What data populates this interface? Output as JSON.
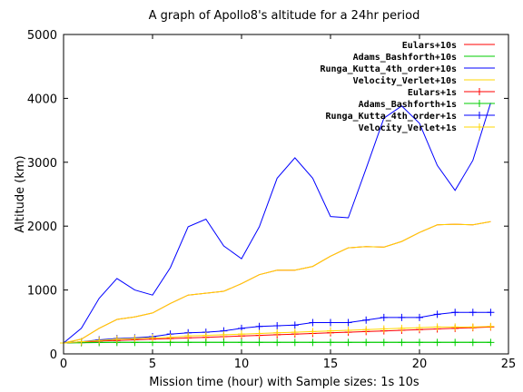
{
  "chart_data": {
    "type": "line",
    "title": "A graph of Apollo8's altitude for a 24hr period",
    "xlabel": "Mission time (hour) with Sample sizes: 1s   10s",
    "ylabel": "Altitude (km)",
    "xlim": [
      0,
      25
    ],
    "ylim": [
      0,
      5000
    ],
    "xticks": [
      0,
      5,
      10,
      15,
      20,
      25
    ],
    "yticks": [
      0,
      1000,
      2000,
      3000,
      4000,
      5000
    ],
    "grid": false,
    "legend_position": "top-right",
    "series": [
      {
        "name": "Eulars+10s",
        "color": "#ff0000",
        "marker": false,
        "x": [
          0,
          1,
          2,
          3,
          4,
          5,
          6,
          7,
          8,
          9,
          10,
          11,
          12,
          13,
          14,
          15,
          16,
          17,
          18,
          19,
          20,
          21,
          22,
          23,
          24
        ],
        "y": [
          170,
          230,
          400,
          540,
          580,
          640,
          790,
          920,
          950,
          980,
          1100,
          1240,
          1310,
          1310,
          1370,
          1530,
          1660,
          1680,
          1670,
          1760,
          1900,
          2020,
          2030,
          2020,
          2070
        ]
      },
      {
        "name": "Adams_Bashforth+10s",
        "color": "#00cc00",
        "marker": false,
        "x": [
          0,
          24
        ],
        "y": [
          180,
          180
        ]
      },
      {
        "name": "Runga_Kutta_4th_order+10s",
        "color": "#0000ff",
        "marker": false,
        "x": [
          0,
          1,
          2,
          3,
          4,
          5,
          6,
          7,
          8,
          9,
          10,
          11,
          12,
          13,
          14,
          15,
          16,
          17,
          18,
          19,
          20,
          21,
          22,
          23,
          24
        ],
        "y": [
          170,
          400,
          870,
          1180,
          1000,
          920,
          1350,
          1990,
          2110,
          1690,
          1490,
          1990,
          2750,
          3070,
          2750,
          2150,
          2130,
          2900,
          3690,
          3880,
          3610,
          2950,
          2560,
          3030,
          3930
        ]
      },
      {
        "name": "Velocity_Verlet+10s",
        "color": "#ffd700",
        "marker": false,
        "x": [
          0,
          1,
          2,
          3,
          4,
          5,
          6,
          7,
          8,
          9,
          10,
          11,
          12,
          13,
          14,
          15,
          16,
          17,
          18,
          19,
          20,
          21,
          22,
          23,
          24
        ],
        "y": [
          170,
          230,
          400,
          540,
          580,
          640,
          790,
          920,
          950,
          980,
          1100,
          1240,
          1310,
          1310,
          1370,
          1530,
          1660,
          1680,
          1670,
          1760,
          1900,
          2020,
          2030,
          2020,
          2070
        ]
      },
      {
        "name": "Eulars+1s",
        "color": "#ff0000",
        "marker": true,
        "x": [
          0,
          1,
          2,
          3,
          4,
          5,
          6,
          7,
          8,
          9,
          10,
          11,
          12,
          13,
          14,
          15,
          16,
          17,
          18,
          19,
          20,
          21,
          22,
          23,
          24
        ],
        "y": [
          170,
          180,
          200,
          210,
          220,
          230,
          240,
          250,
          260,
          270,
          280,
          290,
          300,
          310,
          320,
          330,
          340,
          350,
          360,
          370,
          380,
          390,
          400,
          410,
          420
        ]
      },
      {
        "name": "Adams_Bashforth+1s",
        "color": "#00cc00",
        "marker": true,
        "x": [
          0,
          1,
          2,
          3,
          4,
          5,
          6,
          7,
          8,
          9,
          10,
          11,
          12,
          13,
          14,
          15,
          16,
          17,
          18,
          19,
          20,
          21,
          22,
          23,
          24
        ],
        "y": [
          170,
          175,
          178,
          180,
          180,
          180,
          180,
          180,
          180,
          180,
          180,
          180,
          180,
          180,
          180,
          180,
          180,
          180,
          180,
          180,
          180,
          180,
          180,
          180,
          180
        ]
      },
      {
        "name": "Runga_Kutta_4th_order+1s",
        "color": "#0000ff",
        "marker": true,
        "x": [
          0,
          1,
          2,
          3,
          4,
          5,
          6,
          7,
          8,
          9,
          10,
          11,
          12,
          13,
          14,
          15,
          16,
          17,
          18,
          19,
          20,
          21,
          22,
          23,
          24
        ],
        "y": [
          170,
          190,
          220,
          240,
          250,
          270,
          310,
          330,
          340,
          360,
          400,
          430,
          440,
          450,
          490,
          490,
          490,
          530,
          570,
          570,
          570,
          620,
          650,
          650,
          650
        ]
      },
      {
        "name": "Velocity_Verlet+1s",
        "color": "#ffd700",
        "marker": true,
        "x": [
          0,
          1,
          2,
          3,
          4,
          5,
          6,
          7,
          8,
          9,
          10,
          11,
          12,
          13,
          14,
          15,
          16,
          17,
          18,
          19,
          20,
          21,
          22,
          23,
          24
        ],
        "y": [
          170,
          190,
          210,
          230,
          240,
          250,
          260,
          280,
          290,
          300,
          310,
          320,
          330,
          340,
          350,
          360,
          370,
          380,
          390,
          400,
          410,
          420,
          420,
          420,
          430
        ]
      }
    ]
  }
}
